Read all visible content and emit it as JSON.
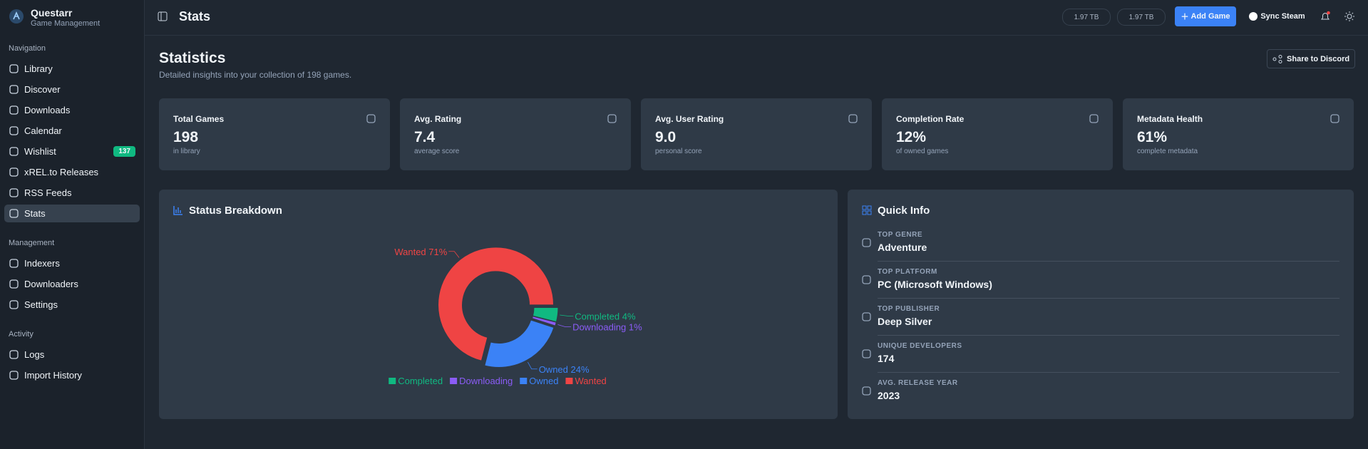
{
  "sidebar": {
    "app_name": "Questarr",
    "app_subtitle": "Game Management",
    "sections": [
      {
        "title": "Navigation",
        "items": [
          {
            "label": "Library"
          },
          {
            "label": "Discover"
          },
          {
            "label": "Downloads"
          },
          {
            "label": "Calendar"
          },
          {
            "label": "Wishlist",
            "badge": "137"
          },
          {
            "label": "xREL.to Releases"
          },
          {
            "label": "RSS Feeds"
          },
          {
            "label": "Stats"
          }
        ]
      },
      {
        "title": "Management",
        "items": [
          {
            "label": "Indexers"
          },
          {
            "label": "Downloaders"
          },
          {
            "label": "Settings"
          }
        ]
      },
      {
        "title": "Activity",
        "items": [
          {
            "label": "Logs"
          },
          {
            "label": "Import History"
          }
        ]
      }
    ]
  },
  "header": {
    "title": "Stats",
    "storage": [
      "1.97 TB",
      "1.97 TB"
    ],
    "add_game": "Add Game",
    "sync_steam": "Sync Steam"
  },
  "page": {
    "title": "Statistics",
    "subtitle": "Detailed insights into your collection of 198 games.",
    "share": "Share to Discord"
  },
  "cards": [
    {
      "title": "Total Games",
      "value": "198",
      "caption": "in library"
    },
    {
      "title": "Avg. Rating",
      "value": "7.4",
      "caption": "average score"
    },
    {
      "title": "Avg. User Rating",
      "value": "9.0",
      "caption": "personal score"
    },
    {
      "title": "Completion Rate",
      "value": "12%",
      "caption": "of owned games"
    },
    {
      "title": "Metadata Health",
      "value": "61%",
      "caption": "complete metadata"
    }
  ],
  "chart_data": {
    "type": "pie",
    "title": "Status Breakdown",
    "categories": [
      "Completed",
      "Downloading",
      "Owned",
      "Wanted"
    ],
    "values": [
      4,
      1,
      24,
      71
    ],
    "value_labels": [
      "4%",
      "1%",
      "24%",
      "71%"
    ],
    "colors": [
      "#10b981",
      "#8b5cf6",
      "#3b82f6",
      "#ef4444"
    ],
    "donut": true
  },
  "quick_info": {
    "title": "Quick Info",
    "items": [
      {
        "label": "TOP GENRE",
        "value": "Adventure"
      },
      {
        "label": "TOP PLATFORM",
        "value": "PC (Microsoft Windows)"
      },
      {
        "label": "TOP PUBLISHER",
        "value": "Deep Silver"
      },
      {
        "label": "UNIQUE DEVELOPERS",
        "value": "174"
      },
      {
        "label": "AVG. RELEASE YEAR",
        "value": "2023"
      }
    ]
  }
}
